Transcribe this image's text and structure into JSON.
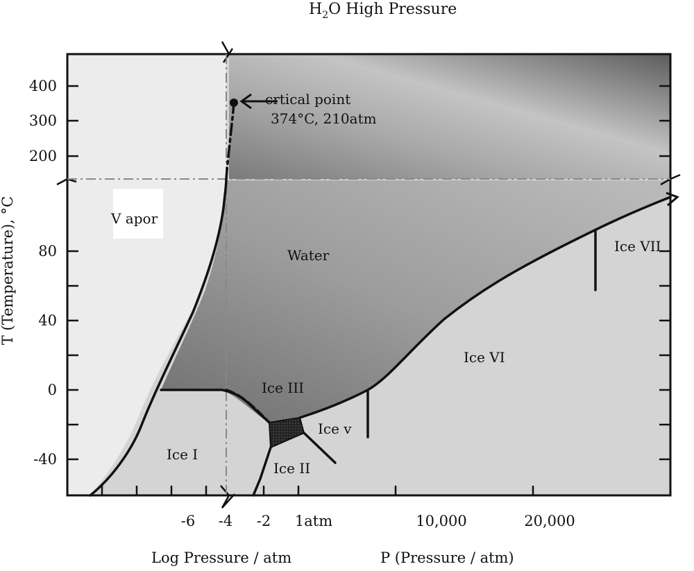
{
  "title": {
    "main": "H",
    "sub": "2",
    "rest": "O High Pressure"
  },
  "y_axis": {
    "label": "T (Temperature), °C",
    "ticks_upper": [
      "400",
      "300",
      "200"
    ],
    "ticks_lower": [
      "80",
      "40",
      "0",
      "-40"
    ]
  },
  "x_axis": {
    "ticks_log": [
      "-6",
      "-4",
      "-2",
      "1atm"
    ],
    "ticks_linear": [
      "10,000",
      "20,000"
    ],
    "label_log": "Log Pressure / atm",
    "label_linear": "P (Pressure / atm)"
  },
  "regions": {
    "vapor": "V apor",
    "water": "Water",
    "ice_1": "Ice I",
    "ice_2": "Ice II",
    "ice_3": "Ice III",
    "ice_5": "Ice v",
    "ice_6": "Ice VI",
    "ice_7": "Ice VII"
  },
  "critical_point": {
    "label": "crtical point",
    "detail": "374°C, 210atm"
  },
  "colors": {
    "frame": "#111111",
    "vapor_fill": "#ececec",
    "ice_fill": "#d2d2d2",
    "water_dark": "#5a5a5a",
    "water_light": "#c9c9c9",
    "triple_fill": "#2a2a2a"
  }
}
